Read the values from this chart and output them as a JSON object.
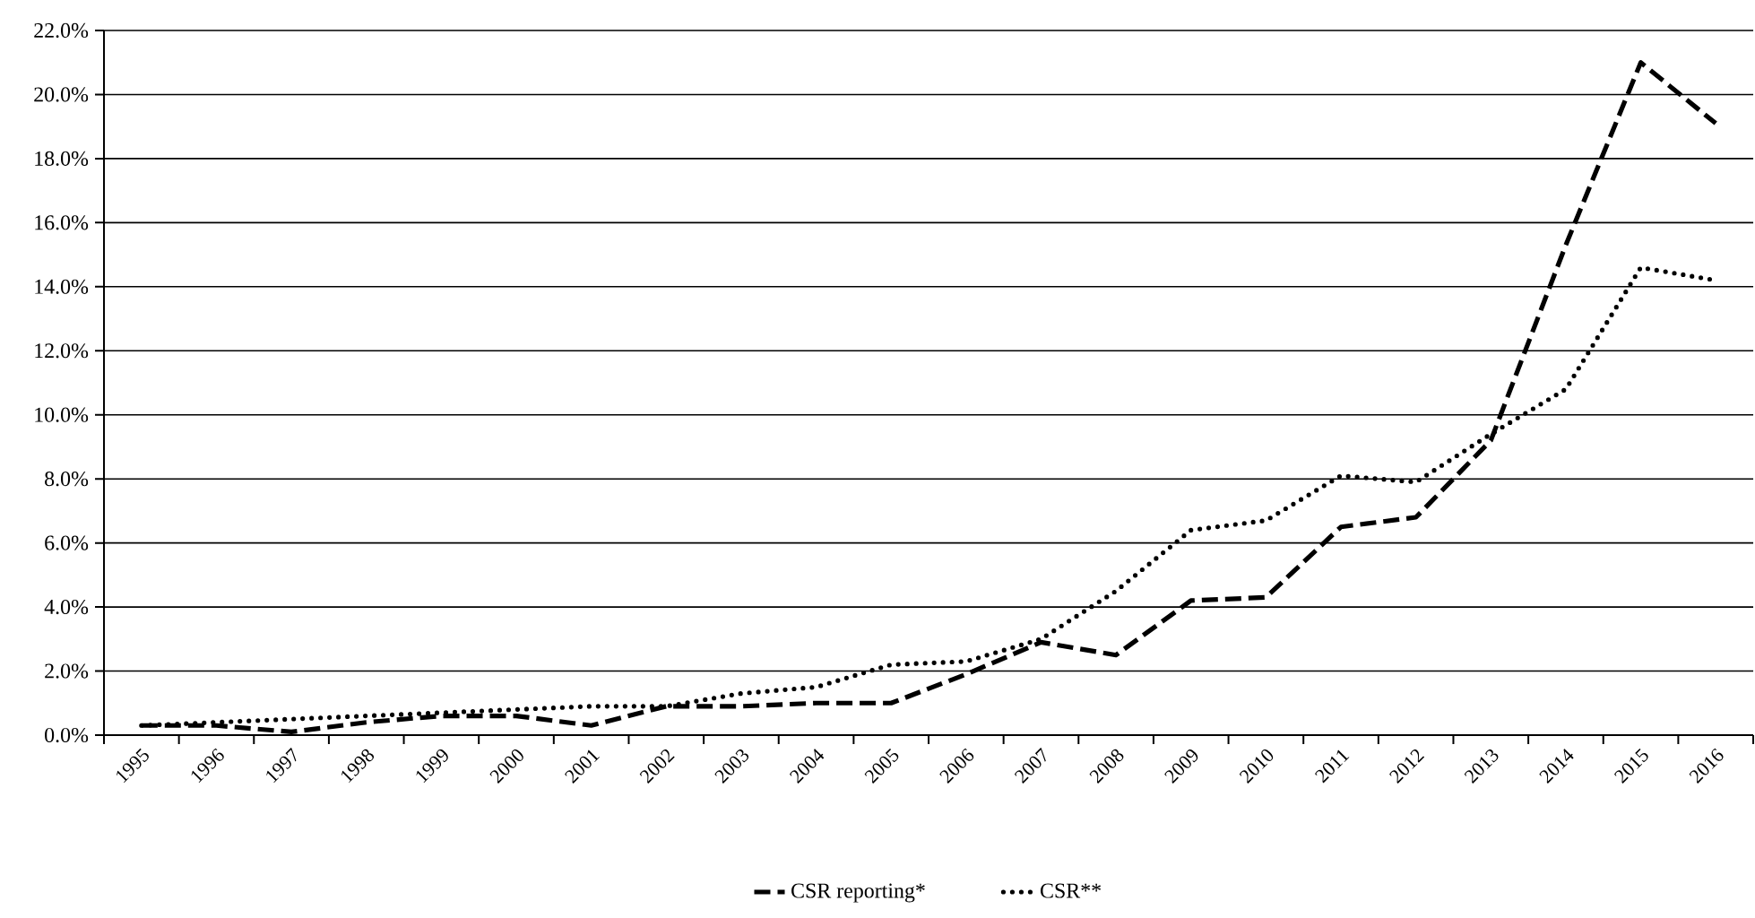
{
  "chart_data": {
    "type": "line",
    "categories": [
      "1995",
      "1996",
      "1997",
      "1998",
      "1999",
      "2000",
      "2001",
      "2002",
      "2003",
      "2004",
      "2005",
      "2006",
      "2007",
      "2008",
      "2009",
      "2010",
      "2011",
      "2012",
      "2013",
      "2014",
      "2015",
      "2016"
    ],
    "series": [
      {
        "name": "CSR reporting*",
        "color": "#000000",
        "line_style": "dashed",
        "values": [
          0.3,
          0.3,
          0.1,
          0.4,
          0.6,
          0.6,
          0.3,
          0.9,
          0.9,
          1.0,
          1.0,
          1.9,
          2.9,
          2.5,
          4.2,
          4.3,
          6.5,
          6.8,
          9.2,
          15.3,
          21.0,
          19.1
        ]
      },
      {
        "name": "CSR**",
        "color": "#000000",
        "line_style": "dotted",
        "values": [
          0.3,
          0.4,
          0.5,
          0.6,
          0.7,
          0.8,
          0.9,
          0.9,
          1.3,
          1.5,
          2.2,
          2.3,
          3.0,
          4.5,
          6.4,
          6.7,
          8.1,
          7.9,
          9.4,
          10.8,
          14.6,
          14.2
        ]
      }
    ],
    "ylim": [
      0,
      22
    ],
    "yticks": [
      {
        "value": 0,
        "label": "0.0%"
      },
      {
        "value": 2,
        "label": "2.0%"
      },
      {
        "value": 4,
        "label": "4.0%"
      },
      {
        "value": 6,
        "label": "6.0%"
      },
      {
        "value": 8,
        "label": "8.0%"
      },
      {
        "value": 10,
        "label": "10.0%"
      },
      {
        "value": 12,
        "label": "12.0%"
      },
      {
        "value": 14,
        "label": "14.0%"
      },
      {
        "value": 16,
        "label": "16.0%"
      },
      {
        "value": 18,
        "label": "18.0%"
      },
      {
        "value": 20,
        "label": "20.0%"
      },
      {
        "value": 22,
        "label": "22.0%"
      }
    ],
    "grid": "y",
    "legend": "bottom",
    "marker": "none"
  }
}
